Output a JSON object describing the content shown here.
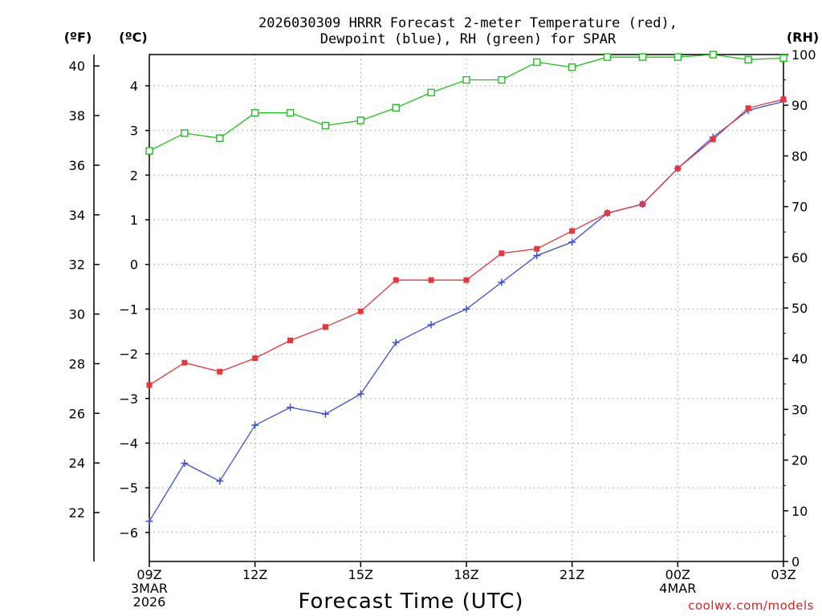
{
  "chart_data": {
    "type": "line",
    "title_line1": "2026030309 HRRR Forecast 2-meter Temperature (red),",
    "title_line2": "Dewpoint (blue), RH (green) for SPAR",
    "xlabel": "Forecast Time (UTC)",
    "credit": "coolwx.com/models",
    "units": {
      "fahrenheit": "(ºF)",
      "celsius": "(ºC)",
      "rh": "(RH)"
    },
    "x_hours": [
      0,
      1,
      2,
      3,
      4,
      5,
      6,
      7,
      8,
      9,
      10,
      11,
      12,
      13,
      14,
      15,
      16,
      17,
      18
    ],
    "x_ticks": [
      {
        "hour": 0,
        "label": "09Z",
        "sub1": "3MAR",
        "sub2": "2026"
      },
      {
        "hour": 3,
        "label": "12Z",
        "sub1": "",
        "sub2": ""
      },
      {
        "hour": 6,
        "label": "15Z",
        "sub1": "",
        "sub2": ""
      },
      {
        "hour": 9,
        "label": "18Z",
        "sub1": "",
        "sub2": ""
      },
      {
        "hour": 12,
        "label": "21Z",
        "sub1": "",
        "sub2": ""
      },
      {
        "hour": 15,
        "label": "00Z",
        "sub1": "4MAR",
        "sub2": ""
      },
      {
        "hour": 18,
        "label": "03Z",
        "sub1": "",
        "sub2": ""
      }
    ],
    "celsius_ylim": [
      -6.65,
      4.7
    ],
    "celsius_ticks": [
      -6,
      -5,
      -4,
      -3,
      -2,
      -1,
      0,
      1,
      2,
      3,
      4
    ],
    "fahrenheit_ticks": [
      22,
      24,
      26,
      28,
      30,
      32,
      34,
      36,
      38,
      40
    ],
    "rh_ylim": [
      0,
      100
    ],
    "rh_ticks": [
      0,
      10,
      20,
      30,
      40,
      50,
      60,
      70,
      80,
      90,
      100
    ],
    "series": [
      {
        "name": "Temperature",
        "unit": "C",
        "color": "#e8363a",
        "marker": "filled-square",
        "values": [
          -2.7,
          -2.2,
          -2.4,
          -2.1,
          -1.7,
          -1.4,
          -1.05,
          -0.35,
          -0.35,
          -0.35,
          0.25,
          0.35,
          0.75,
          1.15,
          1.35,
          2.15,
          2.8,
          3.5,
          3.7
        ]
      },
      {
        "name": "Dewpoint",
        "unit": "C",
        "color": "#3a4ee0",
        "marker": "plus",
        "values": [
          -5.75,
          -4.45,
          -4.85,
          -3.6,
          -3.2,
          -3.35,
          -2.9,
          -1.75,
          -1.35,
          -1.0,
          -0.4,
          0.2,
          0.5,
          1.15,
          1.35,
          2.15,
          2.85,
          3.45,
          3.65
        ]
      },
      {
        "name": "RH",
        "unit": "%",
        "color": "#22c022",
        "marker": "open-square",
        "values": [
          81,
          84.5,
          83.5,
          88.5,
          88.5,
          86,
          87,
          89.5,
          92.5,
          95,
          95,
          98.5,
          97.5,
          99.5,
          99.5,
          99.5,
          100,
          99,
          99.3
        ]
      }
    ]
  }
}
